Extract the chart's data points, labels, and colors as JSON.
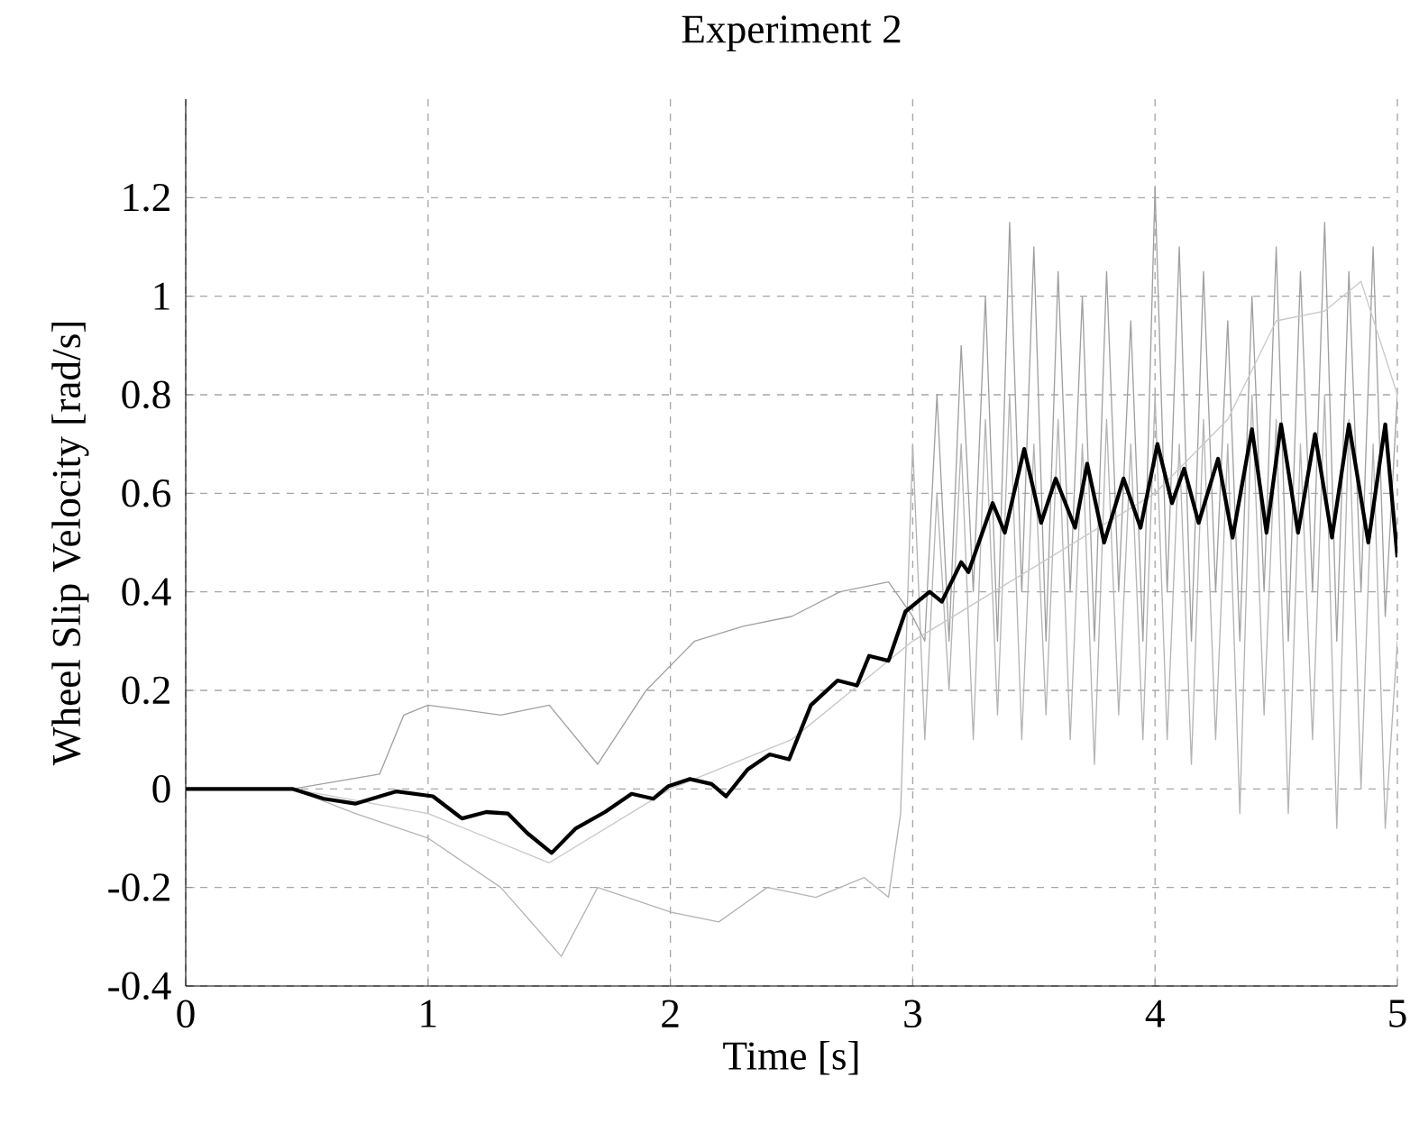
{
  "chart_data": {
    "type": "line",
    "title": "Experiment 2",
    "xlabel": "Time [s]",
    "ylabel": "Wheel Slip Velocity [rad/s]",
    "xlim": [
      0,
      5
    ],
    "ylim": [
      -0.4,
      1.4
    ],
    "xticks": [
      0,
      1,
      2,
      3,
      4,
      5
    ],
    "yticks": [
      -0.4,
      -0.2,
      0,
      0.2,
      0.4,
      0.6,
      0.8,
      1,
      1.2
    ],
    "grid": true,
    "line_style": "solid",
    "marker": "none",
    "series": [
      {
        "color": "#b4b4b4",
        "x": [
          0,
          0.44,
          0.7,
          1.0,
          1.3,
          1.55,
          1.7,
          2.0,
          2.2,
          2.4,
          2.6,
          2.8,
          2.9,
          2.95,
          3.0,
          3.05,
          3.1,
          3.15,
          3.2,
          3.25,
          3.3,
          3.35,
          3.4,
          3.45,
          3.5,
          3.55,
          3.6,
          3.65,
          3.7,
          3.75,
          3.8,
          3.85,
          3.9,
          3.95,
          4.0,
          4.05,
          4.1,
          4.15,
          4.2,
          4.25,
          4.3,
          4.35,
          4.4,
          4.45,
          4.5,
          4.55,
          4.6,
          4.65,
          4.7,
          4.75,
          4.8,
          4.85,
          4.9,
          4.95,
          5.0
        ],
        "values": [
          0,
          0,
          -0.05,
          -0.1,
          -0.2,
          -0.34,
          -0.2,
          -0.25,
          -0.27,
          -0.2,
          -0.22,
          -0.18,
          -0.22,
          -0.05,
          0.7,
          0.1,
          0.6,
          0.2,
          0.7,
          0.1,
          0.75,
          0.15,
          0.8,
          0.1,
          0.7,
          0.15,
          0.75,
          0.1,
          0.7,
          0.05,
          0.75,
          0.15,
          0.7,
          0.1,
          0.8,
          0.1,
          0.7,
          0.05,
          0.75,
          0.1,
          0.7,
          -0.05,
          0.8,
          0.15,
          0.75,
          -0.05,
          0.7,
          0.1,
          0.8,
          -0.08,
          0.75,
          0.0,
          0.7,
          -0.08,
          0.3
        ]
      },
      {
        "color": "#a0a0a0",
        "x": [
          0,
          0.44,
          0.8,
          0.9,
          1.0,
          1.3,
          1.5,
          1.7,
          1.9,
          2.1,
          2.3,
          2.5,
          2.7,
          2.9,
          3.0,
          3.05,
          3.1,
          3.15,
          3.2,
          3.25,
          3.3,
          3.35,
          3.4,
          3.45,
          3.5,
          3.55,
          3.6,
          3.65,
          3.7,
          3.75,
          3.8,
          3.85,
          3.9,
          3.95,
          4.0,
          4.05,
          4.1,
          4.15,
          4.2,
          4.25,
          4.3,
          4.35,
          4.4,
          4.45,
          4.5,
          4.55,
          4.6,
          4.65,
          4.7,
          4.75,
          4.8,
          4.85,
          4.9,
          4.95,
          5.0
        ],
        "values": [
          0,
          0,
          0.03,
          0.15,
          0.17,
          0.15,
          0.17,
          0.05,
          0.2,
          0.3,
          0.33,
          0.35,
          0.4,
          0.42,
          0.35,
          0.3,
          0.8,
          0.3,
          0.9,
          0.4,
          1.0,
          0.3,
          1.15,
          0.4,
          1.1,
          0.3,
          1.05,
          0.4,
          1.0,
          0.3,
          1.05,
          0.4,
          0.95,
          0.3,
          1.22,
          0.4,
          1.1,
          0.3,
          1.05,
          0.4,
          0.95,
          0.3,
          1.0,
          0.4,
          1.1,
          0.3,
          1.05,
          0.4,
          1.15,
          0.3,
          1.05,
          0.4,
          1.1,
          0.35,
          0.8
        ]
      },
      {
        "color": "#c8c8c8",
        "x": [
          0,
          0.44,
          1.0,
          1.5,
          2.0,
          2.5,
          3.0,
          3.5,
          4.0,
          4.3,
          4.5,
          4.7,
          4.85,
          5.0
        ],
        "values": [
          0,
          0,
          -0.05,
          -0.15,
          0.0,
          0.1,
          0.3,
          0.45,
          0.6,
          0.75,
          0.95,
          0.97,
          1.03,
          0.8
        ]
      },
      {
        "color": "#000000",
        "x": [
          0,
          0.44,
          0.57,
          0.7,
          0.87,
          1.02,
          1.14,
          1.24,
          1.33,
          1.41,
          1.51,
          1.61,
          1.73,
          1.84,
          1.93,
          1.99,
          2.08,
          2.17,
          2.23,
          2.32,
          2.41,
          2.49,
          2.58,
          2.69,
          2.77,
          2.82,
          2.9,
          2.97,
          3.07,
          3.12,
          3.2,
          3.23,
          3.33,
          3.38,
          3.46,
          3.53,
          3.59,
          3.67,
          3.72,
          3.79,
          3.87,
          3.94,
          4.01,
          4.07,
          4.12,
          4.18,
          4.26,
          4.32,
          4.4,
          4.46,
          4.52,
          4.59,
          4.66,
          4.73,
          4.8,
          4.88,
          4.95,
          5.0
        ],
        "values": [
          0,
          0,
          -0.02,
          -0.03,
          -0.005,
          -0.015,
          -0.06,
          -0.047,
          -0.05,
          -0.09,
          -0.13,
          -0.08,
          -0.047,
          -0.01,
          -0.02,
          0.005,
          0.02,
          0.01,
          -0.015,
          0.04,
          0.07,
          0.06,
          0.17,
          0.22,
          0.21,
          0.27,
          0.26,
          0.36,
          0.4,
          0.38,
          0.46,
          0.44,
          0.58,
          0.52,
          0.69,
          0.54,
          0.63,
          0.53,
          0.66,
          0.5,
          0.63,
          0.53,
          0.7,
          0.58,
          0.65,
          0.54,
          0.67,
          0.51,
          0.73,
          0.52,
          0.74,
          0.52,
          0.72,
          0.51,
          0.74,
          0.5,
          0.74,
          0.47
        ]
      }
    ]
  }
}
